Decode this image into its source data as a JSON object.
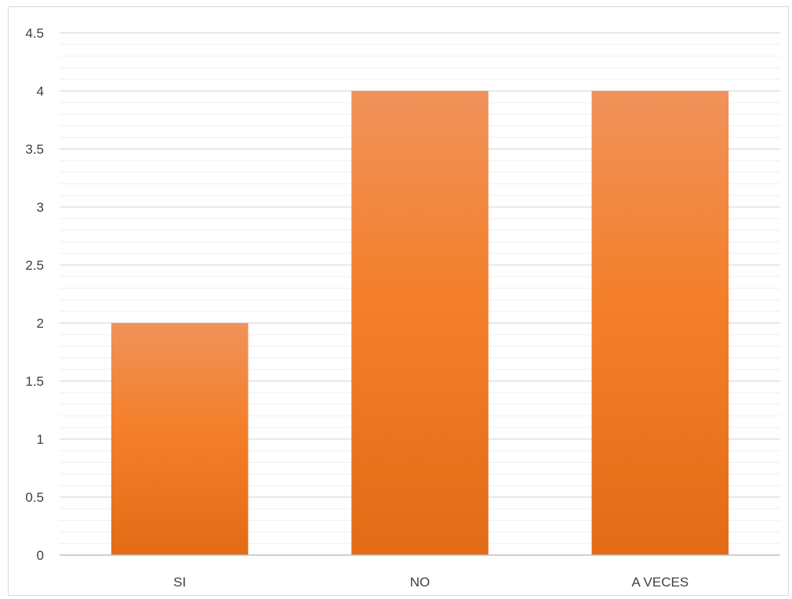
{
  "chart_data": {
    "type": "bar",
    "title": "",
    "xlabel": "",
    "ylabel": "",
    "categories": [
      "SI",
      "NO",
      "A VECES"
    ],
    "values": [
      2,
      4,
      4
    ],
    "ylim": [
      0,
      4.5
    ],
    "yticks": [
      0,
      0.5,
      1,
      1.5,
      2,
      2.5,
      3,
      3.5,
      4,
      4.5
    ],
    "ytick_labels": [
      "0",
      "0.5",
      "1",
      "1.5",
      "2",
      "2.5",
      "3",
      "3.5",
      "4",
      "4.5"
    ],
    "grid": true,
    "minor_grid": true,
    "legend": "none",
    "colors": {
      "bar_top": "#F0925A",
      "bar_mid": "#F47F2A",
      "bar_bottom": "#E36B16",
      "major_grid": "#D9D9D9",
      "minor_grid": "#EFEFEF",
      "axis_line": "#BFBFBF",
      "text": "#404040"
    }
  }
}
